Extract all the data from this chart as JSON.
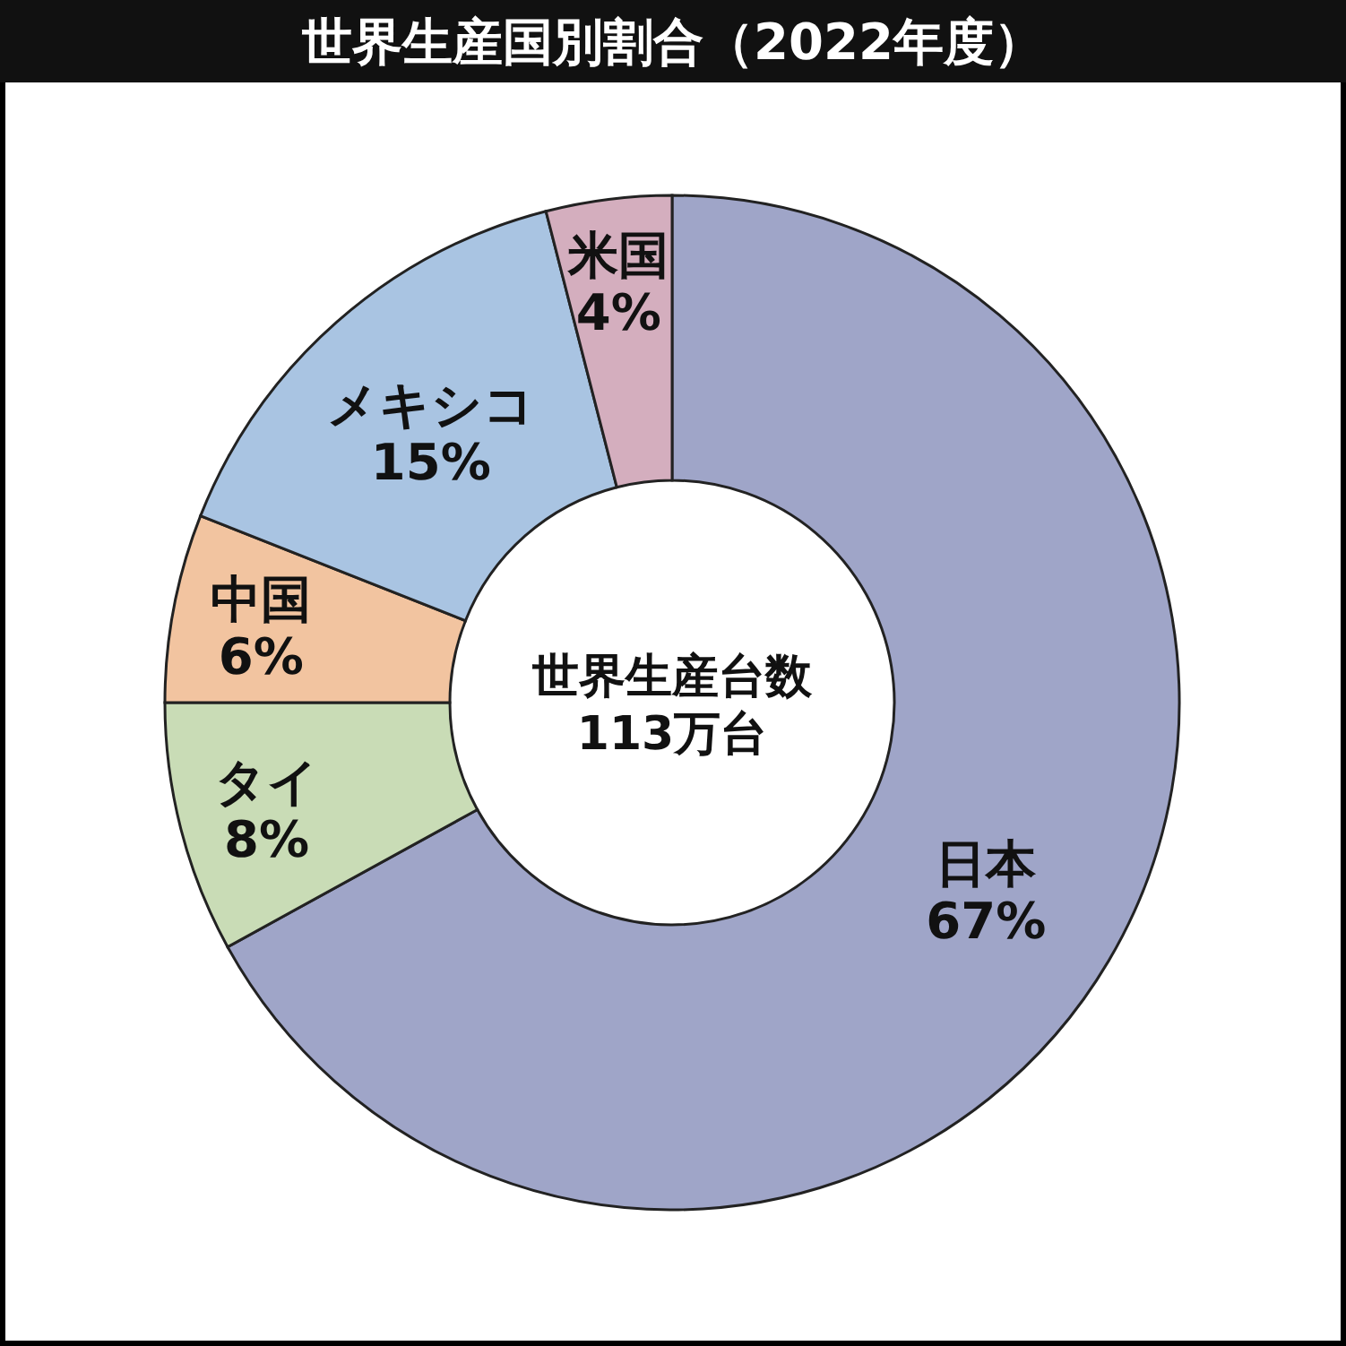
{
  "chart_data": {
    "type": "donut",
    "title": "世界生産国別割合（2022年度）",
    "categories": [
      "日本",
      "タイ",
      "中国",
      "メキシコ",
      "米国"
    ],
    "values": [
      67,
      8,
      6,
      15,
      4
    ],
    "value_labels": [
      "67%",
      "8%",
      "6%",
      "15%",
      "4%"
    ],
    "colors": [
      "#9fa5c8",
      "#c9dcb6",
      "#f2c4a0",
      "#a9c4e2",
      "#d4aebe"
    ],
    "annotations": [
      "世界生産台数\n113万台"
    ]
  }
}
